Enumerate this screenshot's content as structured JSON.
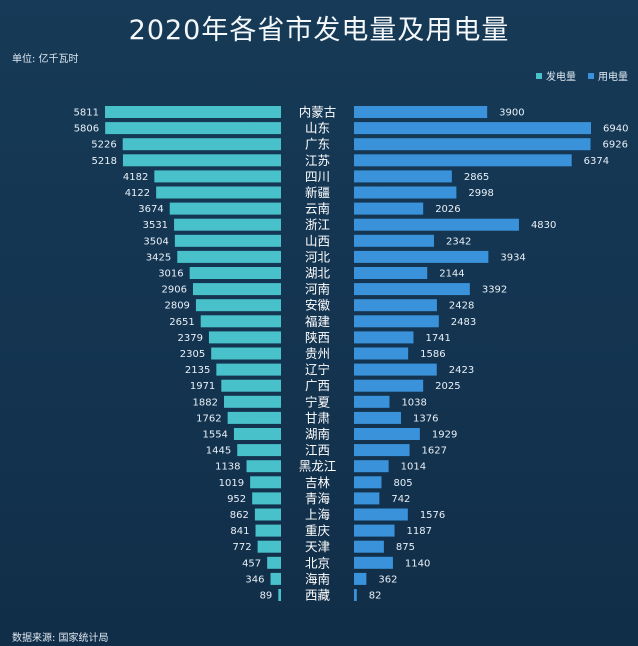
{
  "title": "2020年各省市发电量及用电量",
  "unit": "单位: 亿千瓦时",
  "source": "数据来源: 国家统计局",
  "colors": {
    "generation": "#49c1cb",
    "consumption": "#3a93da"
  },
  "chart_data": {
    "type": "bar",
    "title": "2020年各省市发电量及用电量",
    "categories": [
      "内蒙古",
      "山东",
      "广东",
      "江苏",
      "四川",
      "新疆",
      "云南",
      "浙江",
      "山西",
      "河北",
      "湖北",
      "河南",
      "安徽",
      "福建",
      "陕西",
      "贵州",
      "辽宁",
      "广西",
      "宁夏",
      "甘肃",
      "湖南",
      "江西",
      "黑龙江",
      "吉林",
      "青海",
      "上海",
      "重庆",
      "天津",
      "北京",
      "海南",
      "西藏"
    ],
    "series": [
      {
        "name": "发电量",
        "values": [
          5811,
          5806,
          5226,
          5218,
          4182,
          4122,
          3674,
          3531,
          3504,
          3425,
          3016,
          2906,
          2809,
          2651,
          2379,
          2305,
          2135,
          1971,
          1882,
          1762,
          1554,
          1445,
          1138,
          1019,
          952,
          862,
          841,
          772,
          457,
          346,
          89
        ]
      },
      {
        "name": "用电量",
        "values": [
          3900,
          6940,
          6926,
          6374,
          2865,
          2998,
          2026,
          4830,
          2342,
          3934,
          2144,
          3392,
          2428,
          2483,
          1741,
          1586,
          2423,
          2025,
          1038,
          1376,
          1929,
          1627,
          1014,
          805,
          742,
          1576,
          1187,
          875,
          1140,
          362,
          82
        ]
      }
    ],
    "legend_position": "top-right"
  }
}
